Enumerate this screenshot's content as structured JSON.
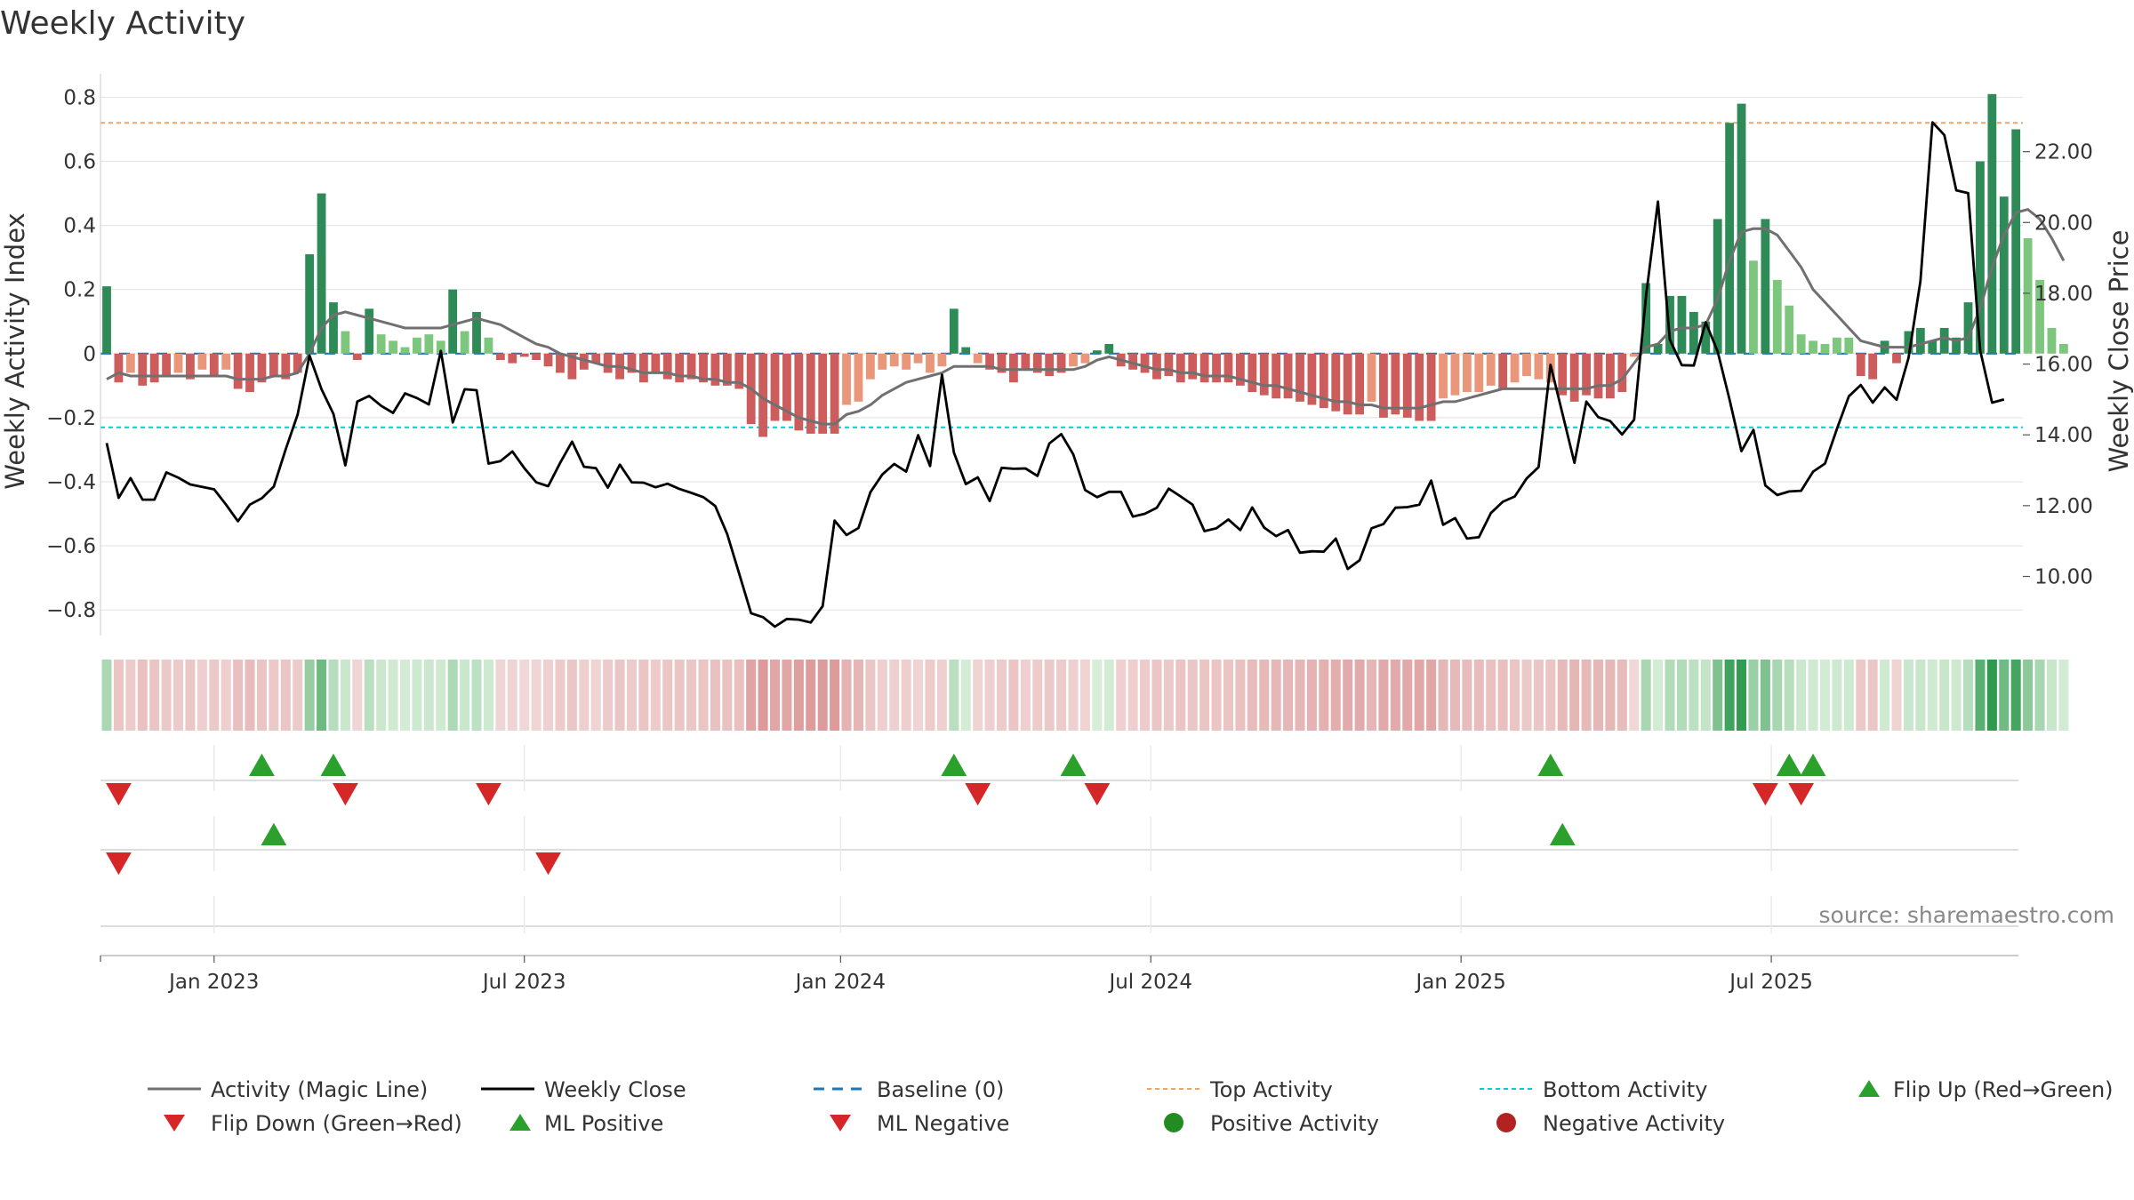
{
  "chart_data": {
    "type": "bar",
    "title": "Weekly Activity",
    "ylabel": "Weekly Activity Index",
    "y2label": "Weekly Close Price",
    "source": "source: sharemaestro.com",
    "ylim": [
      -0.88,
      0.84
    ],
    "y2lim": [
      8.33,
      23.9
    ],
    "y_ticks": [
      {
        "v": 0.8,
        "t": "0.8"
      },
      {
        "v": 0.6,
        "t": "0.6"
      },
      {
        "v": 0.4,
        "t": "0.4"
      },
      {
        "v": 0.2,
        "t": "0.2"
      },
      {
        "v": 0,
        "t": "0"
      },
      {
        "v": -0.2,
        "t": "−0.2"
      },
      {
        "v": -0.4,
        "t": "−0.4"
      },
      {
        "v": -0.6,
        "t": "−0.6"
      },
      {
        "v": -0.8,
        "t": "−0.8"
      }
    ],
    "y2_ticks": [
      {
        "v": 22,
        "t": "22.00"
      },
      {
        "v": 20,
        "t": "20.00"
      },
      {
        "v": 18,
        "t": "18.00"
      },
      {
        "v": 16,
        "t": "16.00"
      },
      {
        "v": 14,
        "t": "14.00"
      },
      {
        "v": 12,
        "t": "12.00"
      },
      {
        "v": 10,
        "t": "10.00"
      }
    ],
    "x_ticks": [
      {
        "label": "Jan 2023",
        "week": 9
      },
      {
        "label": "Jul 2023",
        "week": 35
      },
      {
        "label": "Jan 2024",
        "week": 61.5
      },
      {
        "label": "Jul 2024",
        "week": 87.5
      },
      {
        "label": "Jan 2025",
        "week": 113.5
      },
      {
        "label": "Jul 2025",
        "week": 139.5
      }
    ],
    "top_activity": 0.72,
    "bottom_activity": -0.23,
    "baseline": 0,
    "colors": {
      "strong_positive": "#2e8b57",
      "weak_positive": "#7dc67e",
      "strong_negative": "#cd5c5c",
      "weak_negative": "#e9967a",
      "magic_line": "#707070",
      "close_line": "#000000",
      "baseline": "#1f77b4",
      "top": "#f4a460",
      "bottom": "#00ced1",
      "marker_up": "#2ca02c",
      "marker_down": "#d62728",
      "positive_dot": "#228b22",
      "negative_dot": "#b22222"
    },
    "series": [
      {
        "name": "Weekly Activity",
        "values": [
          0.21,
          -0.09,
          -0.06,
          -0.1,
          -0.09,
          -0.07,
          -0.06,
          -0.08,
          -0.05,
          -0.07,
          -0.05,
          -0.11,
          -0.12,
          -0.09,
          -0.07,
          -0.08,
          -0.06,
          0.31,
          0.5,
          0.16,
          0.07,
          -0.02,
          0.14,
          0.06,
          0.04,
          0.02,
          0.05,
          0.06,
          0.04,
          0.2,
          0.07,
          0.13,
          0.05,
          -0.02,
          -0.03,
          -0.01,
          -0.02,
          -0.04,
          -0.06,
          -0.08,
          -0.05,
          -0.03,
          -0.06,
          -0.08,
          -0.06,
          -0.09,
          -0.06,
          -0.08,
          -0.09,
          -0.08,
          -0.09,
          -0.1,
          -0.1,
          -0.11,
          -0.22,
          -0.26,
          -0.21,
          -0.21,
          -0.24,
          -0.25,
          -0.25,
          -0.25,
          -0.16,
          -0.15,
          -0.08,
          -0.05,
          -0.04,
          -0.05,
          -0.03,
          -0.06,
          -0.04,
          0.14,
          0.02,
          -0.03,
          -0.05,
          -0.06,
          -0.09,
          -0.05,
          -0.06,
          -0.07,
          -0.06,
          -0.04,
          -0.03,
          0.01,
          0.03,
          -0.04,
          -0.05,
          -0.06,
          -0.08,
          -0.07,
          -0.09,
          -0.08,
          -0.09,
          -0.09,
          -0.09,
          -0.1,
          -0.12,
          -0.13,
          -0.14,
          -0.14,
          -0.15,
          -0.16,
          -0.17,
          -0.18,
          -0.19,
          -0.19,
          -0.15,
          -0.2,
          -0.19,
          -0.2,
          -0.21,
          -0.21,
          -0.14,
          -0.13,
          -0.12,
          -0.12,
          -0.1,
          -0.11,
          -0.09,
          -0.07,
          -0.08,
          -0.09,
          -0.13,
          -0.15,
          -0.13,
          -0.14,
          -0.14,
          -0.12,
          -0.01,
          0.22,
          0.03,
          0.18,
          0.18,
          0.13,
          0.1,
          0.42,
          0.72,
          0.78,
          0.29,
          0.42,
          0.23,
          0.15,
          0.06,
          0.04,
          0.03,
          0.05,
          0.05,
          -0.07,
          -0.08,
          0.04,
          -0.03,
          0.07,
          0.08,
          0.04,
          0.08,
          0.05,
          0.16,
          0.6,
          0.81,
          0.49,
          0.7,
          0.36,
          0.23,
          0.08,
          0.03
        ]
      },
      {
        "name": "Activity (Magic Line)",
        "values": [
          -0.08,
          -0.06,
          -0.07,
          -0.07,
          -0.07,
          -0.07,
          -0.07,
          -0.07,
          -0.07,
          -0.07,
          -0.07,
          -0.08,
          -0.08,
          -0.08,
          -0.07,
          -0.07,
          -0.06,
          0.0,
          0.08,
          0.12,
          0.13,
          0.12,
          0.11,
          0.1,
          0.09,
          0.08,
          0.08,
          0.08,
          0.08,
          0.09,
          0.1,
          0.11,
          0.1,
          0.09,
          0.07,
          0.05,
          0.03,
          0.02,
          0.0,
          -0.01,
          -0.02,
          -0.03,
          -0.04,
          -0.04,
          -0.05,
          -0.06,
          -0.06,
          -0.06,
          -0.07,
          -0.07,
          -0.08,
          -0.08,
          -0.09,
          -0.09,
          -0.11,
          -0.14,
          -0.16,
          -0.18,
          -0.2,
          -0.21,
          -0.22,
          -0.22,
          -0.19,
          -0.18,
          -0.16,
          -0.13,
          -0.11,
          -0.09,
          -0.08,
          -0.07,
          -0.06,
          -0.04,
          -0.04,
          -0.04,
          -0.04,
          -0.05,
          -0.05,
          -0.05,
          -0.05,
          -0.05,
          -0.05,
          -0.05,
          -0.04,
          -0.02,
          -0.01,
          -0.02,
          -0.03,
          -0.04,
          -0.05,
          -0.05,
          -0.06,
          -0.06,
          -0.07,
          -0.07,
          -0.07,
          -0.08,
          -0.09,
          -0.1,
          -0.1,
          -0.11,
          -0.12,
          -0.13,
          -0.14,
          -0.15,
          -0.15,
          -0.16,
          -0.16,
          -0.17,
          -0.17,
          -0.17,
          -0.17,
          -0.16,
          -0.15,
          -0.15,
          -0.14,
          -0.13,
          -0.12,
          -0.11,
          -0.11,
          -0.11,
          -0.11,
          -0.11,
          -0.11,
          -0.11,
          -0.11,
          -0.1,
          -0.1,
          -0.08,
          -0.03,
          0.02,
          0.03,
          0.07,
          0.08,
          0.08,
          0.09,
          0.17,
          0.29,
          0.38,
          0.39,
          0.39,
          0.37,
          0.32,
          0.27,
          0.2,
          0.16,
          0.12,
          0.08,
          0.04,
          0.03,
          0.02,
          0.02,
          0.02,
          0.03,
          0.04,
          0.05,
          0.04,
          0.05,
          0.14,
          0.27,
          0.37,
          0.44,
          0.45,
          0.42,
          0.36,
          0.29
        ]
      },
      {
        "name": "Weekly Close",
        "values": [
          13.77,
          12.22,
          12.78,
          12.17,
          12.17,
          12.94,
          12.79,
          12.6,
          12.53,
          12.46,
          12.03,
          11.56,
          12.03,
          12.21,
          12.54,
          13.59,
          14.57,
          16.24,
          15.29,
          14.59,
          13.14,
          14.94,
          15.1,
          14.82,
          14.62,
          15.17,
          15.04,
          14.86,
          16.37,
          14.35,
          15.29,
          15.26,
          13.19,
          13.26,
          13.53,
          13.06,
          12.66,
          12.55,
          13.21,
          13.81,
          13.1,
          13.06,
          12.51,
          13.16,
          12.66,
          12.65,
          12.52,
          12.62,
          12.47,
          12.36,
          12.24,
          11.99,
          11.2,
          10.08,
          8.96,
          8.85,
          8.58,
          8.8,
          8.78,
          8.7,
          9.16,
          11.58,
          11.17,
          11.37,
          12.38,
          12.88,
          13.18,
          12.96,
          13.99,
          13.12,
          15.7,
          13.5,
          12.61,
          12.8,
          12.13,
          13.07,
          13.04,
          13.05,
          12.84,
          13.76,
          14.02,
          13.45,
          12.44,
          12.24,
          12.39,
          12.39,
          11.69,
          11.77,
          11.94,
          12.48,
          12.26,
          12.03,
          11.28,
          11.36,
          11.61,
          11.31,
          11.95,
          11.38,
          11.14,
          11.31,
          10.67,
          10.71,
          10.7,
          11.07,
          10.21,
          10.46,
          11.36,
          11.48,
          11.94,
          11.96,
          12.03,
          12.71,
          11.46,
          11.65,
          11.07,
          11.11,
          11.79,
          12.11,
          12.26,
          12.77,
          13.09,
          15.98,
          14.6,
          13.21,
          14.94,
          14.5,
          14.39,
          14.01,
          14.43,
          17.92,
          20.59,
          16.69,
          15.97,
          15.96,
          17.18,
          16.36,
          15.0,
          13.54,
          14.14,
          12.57,
          12.3,
          12.4,
          12.42,
          12.96,
          13.19,
          14.17,
          15.09,
          15.41,
          14.91,
          15.34,
          14.99,
          16.17,
          18.34,
          22.83,
          22.47,
          20.91,
          20.83,
          16.4,
          14.91,
          15.0
        ]
      }
    ],
    "markers_row1_up": [
      13,
      19,
      71,
      81,
      121,
      141,
      143
    ],
    "markers_row1_down": [
      1,
      20,
      32,
      73,
      83,
      139,
      142
    ],
    "markers_row2_up": [
      14,
      122
    ],
    "markers_row2_down": [
      1,
      37
    ],
    "legend": [
      {
        "label": "Activity (Magic Line)",
        "icon": "line-solid-gray"
      },
      {
        "label": "Weekly Close",
        "icon": "line-solid-black"
      },
      {
        "label": "Baseline (0)",
        "icon": "line-dashed-blue"
      },
      {
        "label": "Top Activity",
        "icon": "line-dotted-orange"
      },
      {
        "label": "Bottom Activity",
        "icon": "line-dotted-cyan"
      },
      {
        "label": "Flip Up (Red→Green)",
        "icon": "triangle-up-green"
      },
      {
        "label": "Flip Down (Green→Red)",
        "icon": "triangle-down-red"
      },
      {
        "label": "ML Positive",
        "icon": "triangle-up-green"
      },
      {
        "label": "ML Negative",
        "icon": "triangle-down-red"
      },
      {
        "label": "Positive Activity",
        "icon": "circle-green"
      },
      {
        "label": "Negative Activity",
        "icon": "circle-red"
      }
    ]
  }
}
